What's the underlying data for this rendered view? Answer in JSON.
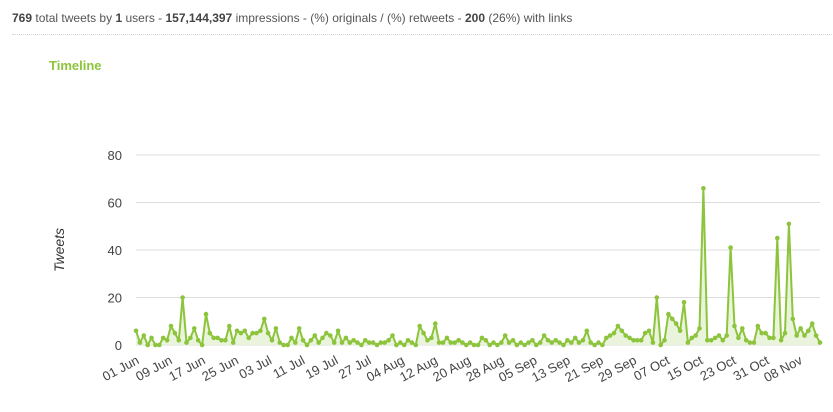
{
  "summary": {
    "total_tweets": "769",
    "total_tweets_label": "total tweets by",
    "users": "1",
    "users_label": "users -",
    "impressions": "157,144,397",
    "impressions_label": "impressions - (%) originals / (%) retweets -",
    "links": "200",
    "links_label": "(26%) with links"
  },
  "section_title": "Timeline",
  "colors": {
    "line": "#8cc43c",
    "area": "#e6f2d6",
    "grid": "#dddddd",
    "title": "#8cc43c"
  },
  "chart_data": {
    "type": "area",
    "title": "",
    "xlabel": "",
    "ylabel": "Tweets",
    "ylim": [
      0,
      80
    ],
    "yticks": [
      0,
      20,
      40,
      60,
      80
    ],
    "grid": true,
    "x_range": [
      "2017-06-01",
      "2017-11-13"
    ],
    "x_tick_labels": [
      "01 Jun",
      "09 Jun",
      "17 Jun",
      "25 Jun",
      "03 Jul",
      "11 Jul",
      "19 Jul",
      "27 Jul",
      "04 Aug",
      "12 Aug",
      "20 Aug",
      "28 Aug",
      "05 Sep",
      "13 Sep",
      "21 Sep",
      "29 Sep",
      "07 Oct",
      "15 Oct",
      "23 Oct",
      "31 Oct",
      "08 Nov"
    ],
    "series": [
      {
        "values": [
          6,
          1,
          4,
          0,
          3,
          0,
          0,
          3,
          2,
          8,
          5,
          2,
          20,
          1,
          3,
          7,
          2,
          0,
          13,
          5,
          3,
          3,
          2,
          2,
          8,
          1,
          6,
          5,
          6,
          3,
          5,
          5,
          6,
          11,
          5,
          2,
          7,
          1,
          0,
          0,
          3,
          1,
          7,
          2,
          0,
          2,
          4,
          1,
          3,
          5,
          4,
          1,
          6,
          1,
          3,
          1,
          2,
          1,
          0,
          2,
          1,
          1,
          0,
          1,
          1,
          2,
          4,
          0,
          1,
          0,
          2,
          1,
          0,
          8,
          5,
          2,
          3,
          9,
          1,
          1,
          3,
          1,
          1,
          2,
          1,
          0,
          1,
          0,
          0,
          3,
          2,
          0,
          1,
          0,
          1,
          4,
          1,
          2,
          0,
          1,
          0,
          1,
          2,
          0,
          1,
          4,
          2,
          1,
          2,
          1,
          0,
          2,
          1,
          3,
          1,
          2,
          6,
          1,
          0,
          1,
          0,
          3,
          4,
          5,
          8,
          6,
          4,
          3,
          2,
          2,
          2,
          5,
          6,
          1,
          20,
          0,
          2,
          13,
          11,
          9,
          6,
          18,
          1,
          3,
          4,
          7,
          66,
          2,
          2,
          3,
          4,
          2,
          4,
          41,
          8,
          3,
          7,
          2,
          1,
          1,
          8,
          5,
          5,
          3,
          3,
          45,
          2,
          5,
          51,
          11,
          4,
          7,
          4,
          6,
          9,
          4,
          1
        ]
      }
    ]
  }
}
